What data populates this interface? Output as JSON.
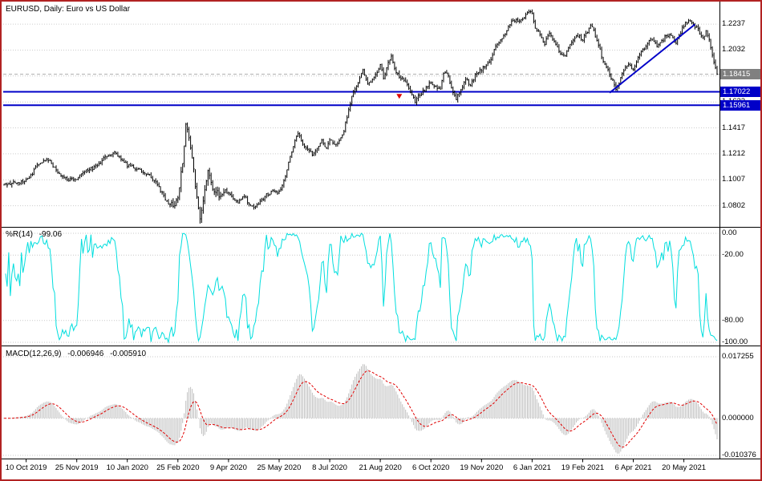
{
  "window": {
    "background": "#ffffff",
    "border_color": "#b22222"
  },
  "chart_data": {
    "type": "ohlc-bar",
    "symbol": "EURUSD",
    "timeframe": "Daily",
    "bars_total": 452,
    "price_range": {
      "min": 1.0635,
      "max": 1.2415
    },
    "price_panel": {
      "title": "EURUSD, Daily: Euro vs US Dollar",
      "bar_color": "#000000",
      "grid_color": "#cccccc",
      "axis_ticks": [
        {
          "label": "1.2237",
          "value": 1.2237
        },
        {
          "label": "1.2032",
          "value": 1.2032
        },
        {
          "label": "1.1827",
          "value": 1.1827
        },
        {
          "label": "1.1622",
          "value": 1.1622
        },
        {
          "label": "1.1417",
          "value": 1.1417
        },
        {
          "label": "1.1212",
          "value": 1.1212
        },
        {
          "label": "1.1007",
          "value": 1.1007
        },
        {
          "label": "1.0802",
          "value": 1.0802
        }
      ],
      "current_price": {
        "label": "1.18415",
        "value": 1.18415,
        "box_color": "#808080",
        "line_color": "#b0b0b0"
      },
      "levels": [
        {
          "label": "1.17022",
          "value": 1.17022,
          "color": "#0000c8"
        },
        {
          "label": "1.15961",
          "value": 1.15961,
          "color": "#0000c8"
        }
      ],
      "trendline": {
        "from_bar": 383,
        "from_price": 1.1695,
        "to_bar": 437,
        "to_price": 1.2235,
        "color": "#0000c8"
      },
      "marker": {
        "bar": 250,
        "price": 1.1685,
        "color": "#dd0000"
      }
    },
    "wpr_panel": {
      "label": "%R(14)",
      "value": "-99.06",
      "line_color": "#00dede",
      "grid_color": "#c8c8c8",
      "axis_ticks": [
        {
          "label": "0.00",
          "value": 0
        },
        {
          "label": "-20.00",
          "value": -20
        },
        {
          "label": "-80.00",
          "value": -80
        },
        {
          "label": "-100.00",
          "value": -100
        }
      ]
    },
    "macd_panel": {
      "label": "MACD(12,26,9)",
      "value_main": "-0.006946",
      "value_signal": "-0.005910",
      "histogram_color": "#c0c0c0",
      "signal_color": "#e00000",
      "grid_color": "#c8c8c8",
      "scale": {
        "max": 0.017255,
        "min": -0.010376
      },
      "axis_ticks": [
        {
          "label": "0.017255",
          "value": 0.017255
        },
        {
          "label": "0.000000",
          "value": 0
        },
        {
          "label": "-0.010376",
          "value": -0.010376
        }
      ]
    },
    "time_axis": {
      "labels": [
        "10 Oct 2019",
        "25 Nov 2019",
        "10 Jan 2020",
        "25 Feb 2020",
        "9 Apr 2020",
        "25 May 2020",
        "8 Jul 2020",
        "21 Aug 2020",
        "6 Oct 2020",
        "19 Nov 2020",
        "6 Jan 2021",
        "19 Feb 2021",
        "6 Apr 2021",
        "20 May 2021"
      ],
      "bar_indices": [
        14,
        46,
        78,
        110,
        142,
        174,
        206,
        238,
        270,
        302,
        334,
        366,
        398,
        430
      ]
    },
    "close_anchors": [
      [
        0,
        1.096
      ],
      [
        6,
        1.0985
      ],
      [
        12,
        1.0992
      ],
      [
        17,
        1.104
      ],
      [
        22,
        1.114
      ],
      [
        28,
        1.116
      ],
      [
        34,
        1.107
      ],
      [
        40,
        1.101
      ],
      [
        46,
        1.1018
      ],
      [
        52,
        1.108
      ],
      [
        58,
        1.111
      ],
      [
        64,
        1.118
      ],
      [
        70,
        1.1215
      ],
      [
        75,
        1.116
      ],
      [
        78,
        1.1122
      ],
      [
        84,
        1.1095
      ],
      [
        90,
        1.106
      ],
      [
        96,
        1.0985
      ],
      [
        102,
        1.086
      ],
      [
        107,
        1.0795
      ],
      [
        110,
        1.088
      ],
      [
        113,
        1.113
      ],
      [
        115,
        1.145
      ],
      [
        117,
        1.135
      ],
      [
        120,
        1.11
      ],
      [
        122,
        1.085
      ],
      [
        124,
        1.068
      ],
      [
        126,
        1.082
      ],
      [
        129,
        1.11
      ],
      [
        132,
        1.095
      ],
      [
        136,
        1.088
      ],
      [
        140,
        1.091
      ],
      [
        144,
        1.087
      ],
      [
        148,
        1.082
      ],
      [
        152,
        1.088
      ],
      [
        156,
        1.0795
      ],
      [
        159,
        1.079
      ],
      [
        162,
        1.083
      ],
      [
        165,
        1.088
      ],
      [
        168,
        1.09
      ],
      [
        171,
        1.092
      ],
      [
        174,
        1.0905
      ],
      [
        177,
        1.099
      ],
      [
        180,
        1.1135
      ],
      [
        183,
        1.128
      ],
      [
        186,
        1.137
      ],
      [
        189,
        1.129
      ],
      [
        192,
        1.125
      ],
      [
        195,
        1.121
      ],
      [
        198,
        1.125
      ],
      [
        201,
        1.131
      ],
      [
        204,
        1.125
      ],
      [
        206,
        1.133
      ],
      [
        209,
        1.128
      ],
      [
        212,
        1.131
      ],
      [
        215,
        1.14
      ],
      [
        218,
        1.156
      ],
      [
        221,
        1.171
      ],
      [
        224,
        1.178
      ],
      [
        227,
        1.188
      ],
      [
        230,
        1.176
      ],
      [
        233,
        1.179
      ],
      [
        236,
        1.185
      ],
      [
        238,
        1.193
      ],
      [
        240,
        1.18
      ],
      [
        243,
        1.194
      ],
      [
        245,
        1.199
      ],
      [
        248,
        1.185
      ],
      [
        251,
        1.182
      ],
      [
        254,
        1.179
      ],
      [
        257,
        1.169
      ],
      [
        260,
        1.163
      ],
      [
        263,
        1.168
      ],
      [
        266,
        1.172
      ],
      [
        270,
        1.178
      ],
      [
        273,
        1.174
      ],
      [
        276,
        1.172
      ],
      [
        278,
        1.186
      ],
      [
        281,
        1.183
      ],
      [
        284,
        1.17
      ],
      [
        286,
        1.1645
      ],
      [
        289,
        1.172
      ],
      [
        292,
        1.181
      ],
      [
        295,
        1.175
      ],
      [
        298,
        1.183
      ],
      [
        302,
        1.1875
      ],
      [
        305,
        1.192
      ],
      [
        308,
        1.196
      ],
      [
        311,
        1.207
      ],
      [
        314,
        1.211
      ],
      [
        317,
        1.216
      ],
      [
        320,
        1.224
      ],
      [
        323,
        1.227
      ],
      [
        326,
        1.225
      ],
      [
        329,
        1.23
      ],
      [
        332,
        1.233
      ],
      [
        334,
        1.2327
      ],
      [
        336,
        1.221
      ],
      [
        339,
        1.216
      ],
      [
        342,
        1.208
      ],
      [
        345,
        1.217
      ],
      [
        348,
        1.211
      ],
      [
        351,
        1.203
      ],
      [
        354,
        1.198
      ],
      [
        357,
        1.204
      ],
      [
        360,
        1.212
      ],
      [
        363,
        1.2145
      ],
      [
        366,
        1.2118
      ],
      [
        369,
        1.217
      ],
      [
        371,
        1.223
      ],
      [
        373,
        1.218
      ],
      [
        376,
        1.208
      ],
      [
        379,
        1.193
      ],
      [
        382,
        1.187
      ],
      [
        385,
        1.179
      ],
      [
        387,
        1.172
      ],
      [
        389,
        1.178
      ],
      [
        392,
        1.187
      ],
      [
        395,
        1.192
      ],
      [
        398,
        1.1875
      ],
      [
        401,
        1.198
      ],
      [
        404,
        1.203
      ],
      [
        407,
        1.208
      ],
      [
        410,
        1.213
      ],
      [
        413,
        1.206
      ],
      [
        416,
        1.21
      ],
      [
        419,
        1.215
      ],
      [
        422,
        1.214
      ],
      [
        425,
        1.208
      ],
      [
        427,
        1.215
      ],
      [
        430,
        1.2228
      ],
      [
        433,
        1.226
      ],
      [
        436,
        1.223
      ],
      [
        439,
        1.219
      ],
      [
        442,
        1.212
      ],
      [
        444,
        1.218
      ],
      [
        446,
        1.211
      ],
      [
        448,
        1.199
      ],
      [
        450,
        1.19
      ],
      [
        451,
        1.1841
      ]
    ]
  }
}
